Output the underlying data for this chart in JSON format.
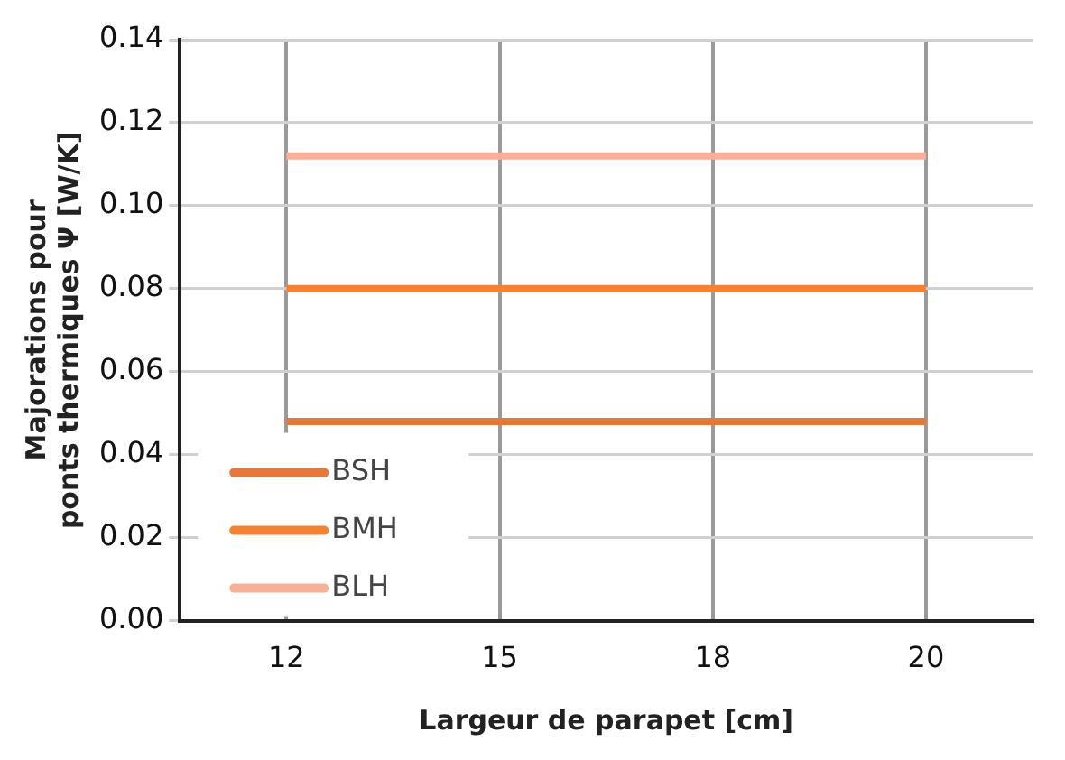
{
  "chart_data": {
    "type": "line",
    "xlabel": "Largeur de parapet [cm]",
    "ylabel": "Majorations pour\nponts thermiques Ψ [W/K]",
    "categories": [
      "12",
      "15",
      "18",
      "20"
    ],
    "series": [
      {
        "name": "BSH",
        "color": "#e8783a",
        "values": [
          0.048,
          0.048,
          0.048,
          0.048
        ]
      },
      {
        "name": "BMH",
        "color": "#f58131",
        "values": [
          0.08,
          0.08,
          0.08,
          0.08
        ]
      },
      {
        "name": "BLH",
        "color": "#f8b196",
        "values": [
          0.112,
          0.112,
          0.112,
          0.112
        ]
      }
    ],
    "ylim": [
      0,
      0.14
    ],
    "yticks": [
      {
        "value": 0,
        "label": "0.00"
      },
      0.02,
      0.04,
      0.06,
      0.08,
      {
        "value": 0.1,
        "label": "0.10"
      },
      0.12,
      0.14
    ],
    "grid": true,
    "legend": "bottom left",
    "marker": "none",
    "line_style": "solid"
  }
}
